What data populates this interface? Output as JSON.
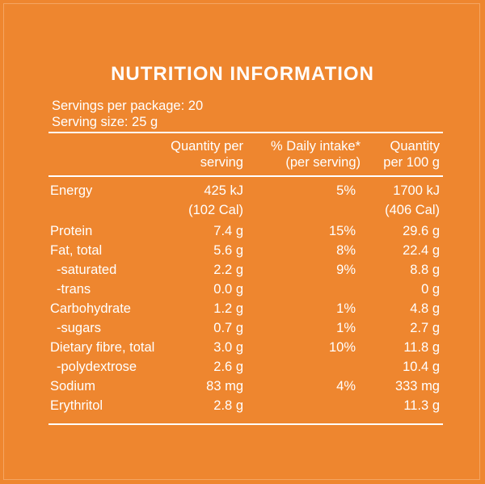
{
  "title": "NUTRITION INFORMATION",
  "servings_per_package": "Servings per package: 20",
  "serving_size": "Serving size: 25 g",
  "headers": {
    "quantity_per_serving": [
      "Quantity per",
      "serving"
    ],
    "daily_intake": [
      "% Daily intake*",
      "(per serving)"
    ],
    "quantity_per_100g": [
      "Quantity",
      "per 100 g"
    ]
  },
  "rows": [
    {
      "label": "Energy",
      "serving": "425 kJ",
      "daily": "5%",
      "per100": "1700 kJ"
    },
    {
      "label": "",
      "serving": "(102 Cal)",
      "daily": "",
      "per100": "(406 Cal)"
    },
    {
      "label": "Protein",
      "serving": "7.4 g",
      "daily": "15%",
      "per100": "29.6 g"
    },
    {
      "label": "Fat, total",
      "serving": "5.6 g",
      "daily": "8%",
      "per100": "22.4 g"
    },
    {
      "label": "-saturated",
      "serving": "2.2 g",
      "daily": "9%",
      "per100": "8.8 g"
    },
    {
      "label": "-trans",
      "serving": "0.0 g",
      "daily": "",
      "per100": "0 g"
    },
    {
      "label": "Carbohydrate",
      "serving": "1.2 g",
      "daily": "1%",
      "per100": "4.8 g"
    },
    {
      "label": "-sugars",
      "serving": "0.7 g",
      "daily": "1%",
      "per100": "2.7 g"
    },
    {
      "label": "Dietary fibre, total",
      "serving": "3.0 g",
      "daily": "10%",
      "per100": "11.8 g"
    },
    {
      "label": "-polydextrose",
      "serving": "2.6 g",
      "daily": "",
      "per100": "10.4 g"
    },
    {
      "label": "Sodium",
      "serving": "83 mg",
      "daily": "4%",
      "per100": "333 mg"
    },
    {
      "label": "Erythritol",
      "serving": "2.8 g",
      "daily": "",
      "per100": "11.3 g"
    }
  ]
}
